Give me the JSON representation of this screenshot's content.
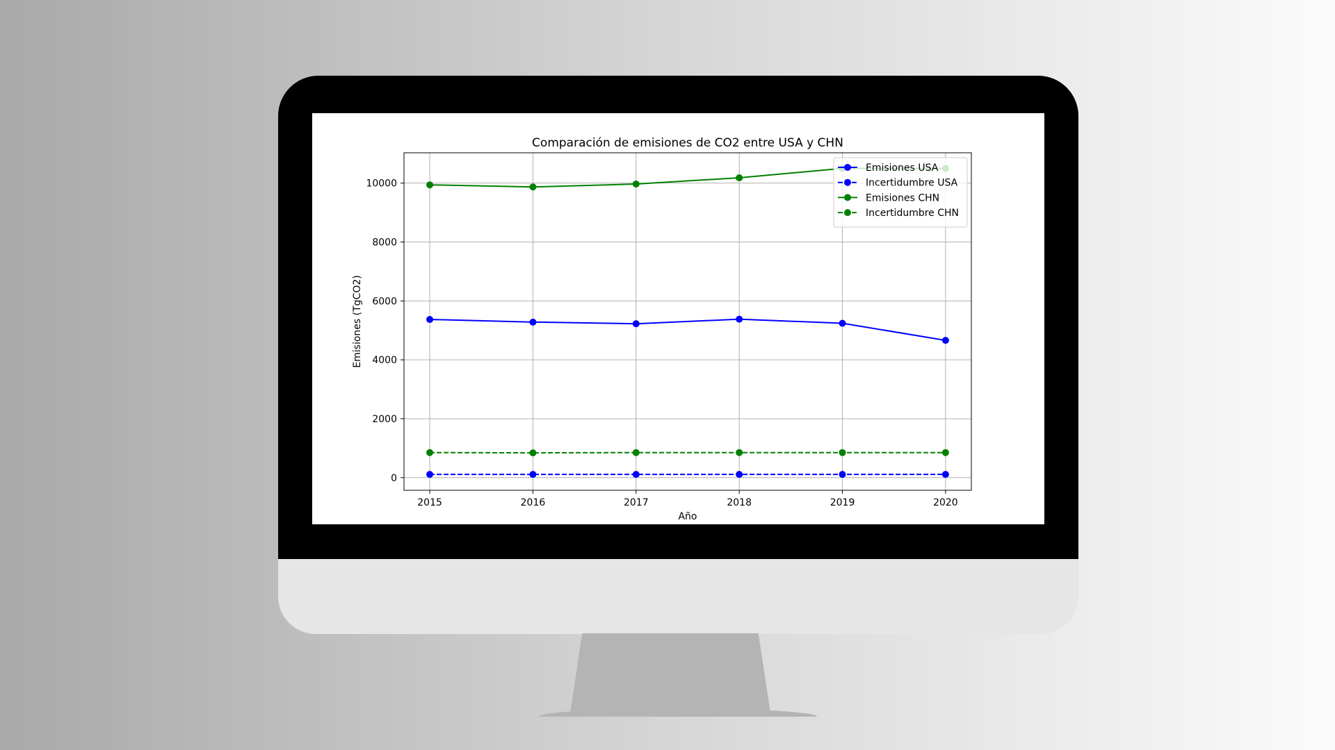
{
  "chart_data": {
    "type": "line",
    "title": "Comparación de emisiones de CO2 entre USA y CHN",
    "xlabel": "Año",
    "ylabel": "Emisiones (TgCO2)",
    "x": [
      2015,
      2016,
      2017,
      2018,
      2019,
      2020
    ],
    "xlim": [
      2014.75,
      2020.25
    ],
    "ylim": [
      -430,
      11030
    ],
    "yticks": [
      0,
      2000,
      4000,
      6000,
      8000,
      10000
    ],
    "grid": true,
    "legend_position": "upper right",
    "series": [
      {
        "name": "Emisiones USA",
        "color": "#0000ff",
        "linestyle": "solid",
        "marker": "circle",
        "values": [
          5370,
          5280,
          5225,
          5380,
          5240,
          4660
        ]
      },
      {
        "name": "Incertidumbre USA",
        "color": "#0000ff",
        "linestyle": "dashed",
        "marker": "circle",
        "values": [
          110,
          110,
          110,
          110,
          110,
          110
        ]
      },
      {
        "name": "Emisiones CHN",
        "color": "#008000",
        "linestyle": "solid",
        "marker": "circle",
        "values": [
          9940,
          9870,
          9970,
          10180,
          10500,
          10500
        ]
      },
      {
        "name": "Incertidumbre CHN",
        "color": "#008000",
        "linestyle": "dashed",
        "marker": "circle",
        "values": [
          850,
          840,
          850,
          850,
          850,
          850
        ]
      }
    ]
  }
}
